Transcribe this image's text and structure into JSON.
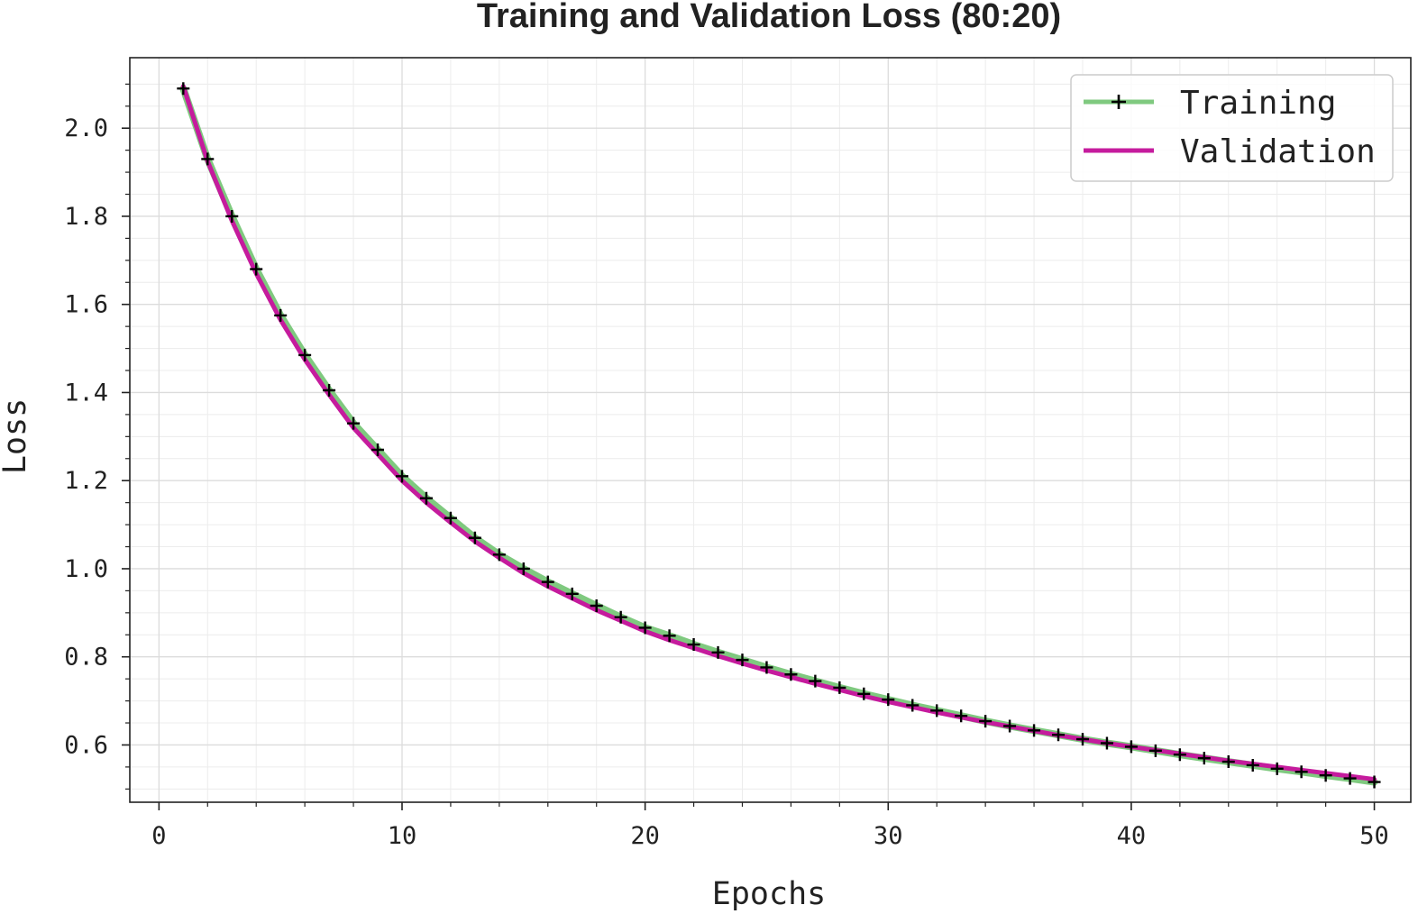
{
  "chart_data": {
    "type": "line",
    "title": "Training and Validation Loss (80:20)",
    "xlabel": "Epochs",
    "ylabel": "Loss",
    "xlim": [
      -1.2,
      51.5
    ],
    "ylim": [
      0.47,
      2.16
    ],
    "xticks": [
      0,
      10,
      20,
      30,
      40,
      50
    ],
    "xtick_labels": [
      "0",
      "10",
      "20",
      "30",
      "40",
      "50"
    ],
    "yticks": [
      0.6,
      0.8,
      1.0,
      1.2,
      1.4,
      1.6,
      1.8,
      2.0
    ],
    "ytick_labels": [
      "0.6",
      "0.8",
      "1.0",
      "1.2",
      "1.4",
      "1.6",
      "1.8",
      "2.0"
    ],
    "grid": true,
    "minor_grid": true,
    "legend_position": "top-right",
    "x": [
      1,
      2,
      3,
      4,
      5,
      6,
      7,
      8,
      9,
      10,
      11,
      12,
      13,
      14,
      15,
      16,
      17,
      18,
      19,
      20,
      21,
      22,
      23,
      24,
      25,
      26,
      27,
      28,
      29,
      30,
      31,
      32,
      33,
      34,
      35,
      36,
      37,
      38,
      39,
      40,
      41,
      42,
      43,
      44,
      45,
      46,
      47,
      48,
      49,
      50
    ],
    "series": [
      {
        "name": "Training",
        "color": "#7fc97f",
        "marker": "plus",
        "values": [
          2.09,
          1.93,
          1.8,
          1.68,
          1.575,
          1.485,
          1.405,
          1.33,
          1.27,
          1.21,
          1.16,
          1.115,
          1.07,
          1.032,
          1.0,
          0.97,
          0.943,
          0.916,
          0.89,
          0.866,
          0.848,
          0.828,
          0.81,
          0.793,
          0.776,
          0.76,
          0.745,
          0.73,
          0.716,
          0.703,
          0.69,
          0.678,
          0.666,
          0.654,
          0.643,
          0.633,
          0.623,
          0.613,
          0.604,
          0.596,
          0.587,
          0.578,
          0.57,
          0.562,
          0.554,
          0.546,
          0.539,
          0.531,
          0.524,
          0.516
        ]
      },
      {
        "name": "Validation",
        "color": "#c51b9d",
        "marker": "none",
        "values": [
          2.095,
          1.925,
          1.79,
          1.67,
          1.565,
          1.475,
          1.395,
          1.32,
          1.26,
          1.2,
          1.15,
          1.105,
          1.062,
          1.025,
          0.99,
          0.96,
          0.933,
          0.906,
          0.882,
          0.858,
          0.838,
          0.82,
          0.802,
          0.785,
          0.769,
          0.754,
          0.739,
          0.725,
          0.711,
          0.698,
          0.686,
          0.674,
          0.663,
          0.652,
          0.642,
          0.632,
          0.622,
          0.613,
          0.604,
          0.596,
          0.588,
          0.58,
          0.572,
          0.564,
          0.557,
          0.55,
          0.543,
          0.536,
          0.529,
          0.522
        ]
      }
    ]
  }
}
